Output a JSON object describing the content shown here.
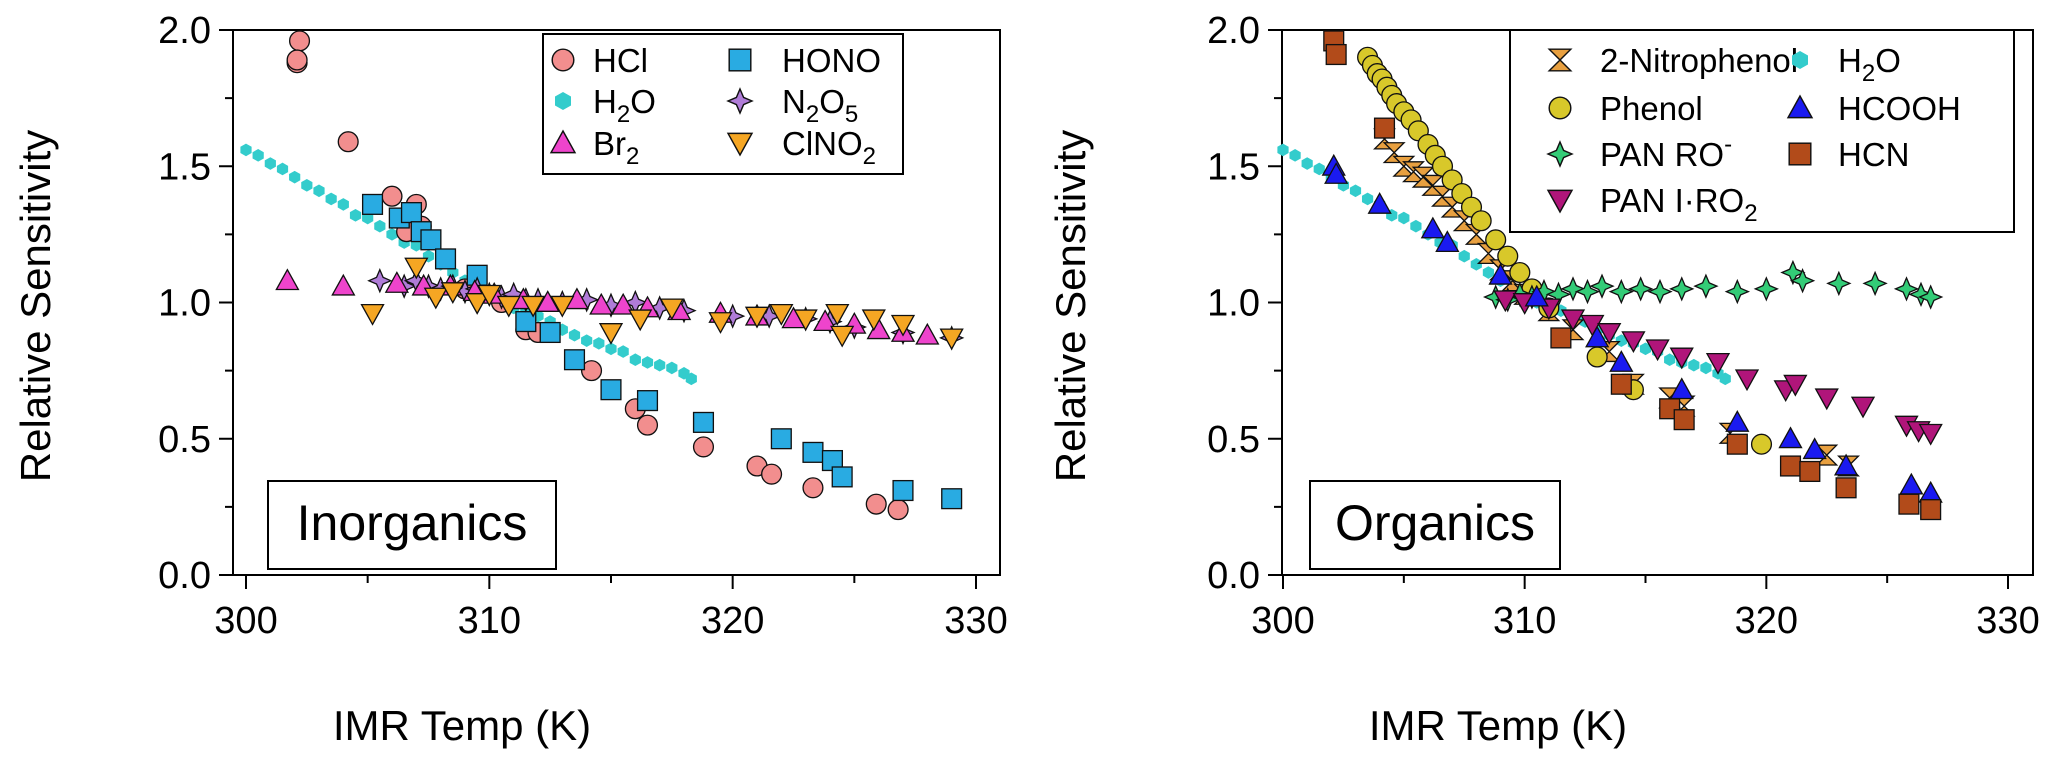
{
  "chart_data": [
    {
      "type": "scatter",
      "panel": "left",
      "panel_label": "Inorganics",
      "xlabel": "IMR Temp (K)",
      "ylabel": "Relative Sensitivity",
      "xlim": [
        300,
        330
      ],
      "ylim": [
        0.0,
        2.0
      ],
      "xticks": [
        "300",
        "310",
        "320",
        "330"
      ],
      "yticks": [
        "0.0",
        "0.5",
        "1.0",
        "1.5",
        "2.0"
      ],
      "legend_position": "top-right",
      "series": [
        {
          "name": "HCl",
          "label_text": "HCl",
          "marker": "circle",
          "color": "#f28e8e",
          "x": [
            302.2,
            302.1,
            302.1,
            304.2,
            306.0,
            306.6,
            307.0,
            307.2,
            309.0,
            310.5,
            311.5,
            312.0,
            314.2,
            316.0,
            316.5,
            318.8,
            321.0,
            321.6,
            323.3,
            325.9,
            326.8
          ],
          "y": [
            1.96,
            1.88,
            1.89,
            1.59,
            1.39,
            1.26,
            1.36,
            1.28,
            1.05,
            1.0,
            0.9,
            0.89,
            0.75,
            0.61,
            0.55,
            0.47,
            0.4,
            0.37,
            0.32,
            0.26,
            0.24
          ]
        },
        {
          "name": "HONO",
          "label_text": "HONO",
          "marker": "square",
          "color": "#29abe2",
          "x": [
            305.2,
            306.3,
            306.8,
            307.2,
            307.6,
            308.2,
            309.5,
            311.5,
            312.5,
            313.5,
            315.0,
            316.5,
            318.8,
            322.0,
            323.3,
            324.1,
            324.5,
            327.0,
            329.0
          ],
          "y": [
            1.36,
            1.31,
            1.33,
            1.26,
            1.23,
            1.16,
            1.1,
            0.93,
            0.89,
            0.79,
            0.68,
            0.64,
            0.56,
            0.5,
            0.45,
            0.42,
            0.36,
            0.31,
            0.28
          ]
        },
        {
          "name": "H2O",
          "label_base": "H",
          "label_sub": "2",
          "label_tail": "O",
          "marker": "hexagon",
          "color": "#33cccc",
          "x": [
            300.0,
            300.5,
            301.0,
            301.5,
            302.0,
            302.5,
            303.0,
            303.5,
            304.0,
            304.5,
            305.0,
            305.5,
            306.0,
            306.5,
            307.0,
            307.5,
            308.0,
            308.5,
            309.0,
            309.5,
            310.0,
            310.5,
            311.0,
            311.5,
            312.0,
            312.5,
            313.0,
            313.5,
            314.0,
            314.5,
            315.0,
            315.5,
            316.0,
            316.5,
            317.0,
            317.5,
            318.0,
            318.3
          ],
          "y": [
            1.56,
            1.54,
            1.51,
            1.49,
            1.46,
            1.43,
            1.41,
            1.38,
            1.36,
            1.32,
            1.31,
            1.28,
            1.25,
            1.22,
            1.21,
            1.17,
            1.14,
            1.11,
            1.08,
            1.05,
            1.03,
            1.0,
            0.98,
            0.97,
            0.95,
            0.93,
            0.9,
            0.88,
            0.86,
            0.85,
            0.83,
            0.82,
            0.79,
            0.78,
            0.77,
            0.76,
            0.74,
            0.72
          ]
        },
        {
          "name": "N2O5",
          "label_base": "N",
          "label_sub": "2",
          "label_tail": "O",
          "label_sub2": "5",
          "marker": "star4",
          "color": "#b07cd8",
          "x": [
            305.5,
            306.5,
            307.0,
            307.5,
            308.0,
            308.5,
            309.0,
            309.5,
            310.0,
            310.5,
            311.0,
            311.5,
            312.0,
            313.0,
            314.0,
            315.0,
            316.0,
            317.0,
            318.0,
            320.0,
            321.5,
            323.0,
            324.0,
            325.0,
            327.0,
            329.0
          ],
          "y": [
            1.08,
            1.06,
            1.08,
            1.06,
            1.05,
            1.06,
            1.04,
            1.05,
            1.03,
            1.02,
            1.03,
            1.01,
            1.01,
            1.0,
            1.01,
            0.99,
            1.0,
            0.98,
            0.97,
            0.95,
            0.95,
            0.94,
            0.93,
            0.91,
            0.89,
            0.87
          ]
        },
        {
          "name": "Br2",
          "label_base": "Br",
          "label_sub": "2",
          "marker": "triangle-up",
          "color": "#ee44cc",
          "x": [
            301.7,
            304.0,
            306.2,
            307.3,
            308.4,
            309.4,
            310.2,
            311.4,
            312.4,
            313.6,
            314.6,
            315.5,
            316.5,
            317.8,
            319.5,
            321.0,
            322.5,
            323.8,
            325.0,
            326.0,
            327.0,
            328.0
          ],
          "y": [
            1.08,
            1.06,
            1.07,
            1.06,
            1.06,
            1.04,
            1.03,
            1.01,
            1.0,
            1.01,
            0.99,
            0.99,
            0.98,
            0.97,
            0.96,
            0.95,
            0.94,
            0.93,
            0.92,
            0.9,
            0.89,
            0.88
          ]
        },
        {
          "name": "ClNO2",
          "label_base": "ClNO",
          "label_sub": "2",
          "marker": "triangle-down",
          "color": "#f5a623",
          "x": [
            305.2,
            307.0,
            307.8,
            308.5,
            309.5,
            310.0,
            310.8,
            311.8,
            313.0,
            315.0,
            316.2,
            317.5,
            319.5,
            321.0,
            322.0,
            323.0,
            324.3,
            324.5,
            325.8,
            327.0,
            329.0
          ],
          "y": [
            0.96,
            1.13,
            1.02,
            1.04,
            1.0,
            1.03,
            0.99,
            0.99,
            0.99,
            0.89,
            0.94,
            0.98,
            0.93,
            0.95,
            0.96,
            0.94,
            0.96,
            0.88,
            0.94,
            0.92,
            0.87
          ]
        }
      ]
    },
    {
      "type": "scatter",
      "panel": "right",
      "panel_label": "Organics",
      "xlabel": "IMR Temp (K)",
      "ylabel": "Relative Sensitivity",
      "xlim": [
        300,
        330
      ],
      "ylim": [
        0.0,
        2.0
      ],
      "xticks": [
        "300",
        "310",
        "320",
        "330"
      ],
      "yticks": [
        "0.0",
        "0.5",
        "1.0",
        "1.5",
        "2.0"
      ],
      "legend_position": "top-right",
      "series": [
        {
          "name": "2-Nitrophenol",
          "label_text": "2-Nitrophenol",
          "marker": "hourglass",
          "color": "#e8a040",
          "x": [
            304.2,
            304.6,
            305.0,
            305.4,
            305.8,
            306.2,
            306.6,
            307.0,
            307.5,
            308.0,
            308.5,
            309.0,
            309.5,
            310.0,
            311.0,
            312.0,
            313.5,
            314.5,
            316.0,
            316.6,
            318.5,
            322.5,
            323.4
          ],
          "y": [
            1.6,
            1.55,
            1.5,
            1.48,
            1.46,
            1.43,
            1.39,
            1.35,
            1.3,
            1.25,
            1.18,
            1.12,
            1.08,
            1.03,
            0.97,
            0.9,
            0.82,
            0.7,
            0.65,
            0.62,
            0.52,
            0.44,
            0.4
          ]
        },
        {
          "name": "Phenol",
          "label_text": "Phenol",
          "marker": "circle",
          "color": "#d8c82a",
          "x": [
            303.5,
            303.7,
            303.9,
            304.1,
            304.3,
            304.5,
            304.7,
            305.0,
            305.3,
            305.6,
            306.0,
            306.3,
            306.6,
            307.0,
            307.4,
            307.8,
            308.2,
            308.8,
            309.3,
            309.8,
            310.3,
            311.0,
            313.0,
            314.5,
            319.8
          ],
          "y": [
            1.9,
            1.87,
            1.84,
            1.82,
            1.79,
            1.76,
            1.73,
            1.7,
            1.67,
            1.63,
            1.58,
            1.54,
            1.5,
            1.45,
            1.4,
            1.35,
            1.3,
            1.23,
            1.17,
            1.11,
            1.05,
            0.98,
            0.8,
            0.68,
            0.48
          ]
        },
        {
          "name": "PAN RO-",
          "label_text": "PAN RO",
          "label_sup": "-",
          "marker": "star4",
          "color": "#33cc77",
          "x": [
            308.8,
            309.3,
            309.8,
            310.3,
            310.8,
            311.4,
            312.0,
            312.6,
            313.2,
            314.0,
            314.8,
            315.6,
            316.5,
            317.5,
            318.8,
            320.0,
            321.1,
            321.5,
            323.0,
            324.5,
            325.8,
            326.4,
            326.8
          ],
          "y": [
            1.02,
            1.01,
            1.03,
            1.02,
            1.04,
            1.03,
            1.05,
            1.04,
            1.06,
            1.04,
            1.05,
            1.04,
            1.05,
            1.06,
            1.04,
            1.05,
            1.11,
            1.08,
            1.07,
            1.07,
            1.05,
            1.03,
            1.02
          ]
        },
        {
          "name": "PAN I·RO2",
          "label_text": "PAN I·RO",
          "label_sub": "2",
          "marker": "triangle-down",
          "color": "#b0157a",
          "x": [
            309.2,
            310.0,
            311.0,
            312.0,
            312.8,
            313.5,
            314.5,
            315.5,
            316.5,
            318.0,
            319.2,
            320.8,
            321.2,
            322.5,
            324.0,
            325.8,
            326.3,
            326.8
          ],
          "y": [
            1.01,
            1.0,
            0.98,
            0.94,
            0.92,
            0.89,
            0.86,
            0.83,
            0.8,
            0.78,
            0.72,
            0.68,
            0.7,
            0.65,
            0.62,
            0.55,
            0.53,
            0.52
          ]
        },
        {
          "name": "H2O",
          "label_base": "H",
          "label_sub": "2",
          "label_tail": "O",
          "marker": "hexagon",
          "color": "#33cccc",
          "x": [
            300.0,
            300.5,
            301.0,
            301.5,
            302.0,
            302.5,
            303.0,
            303.5,
            304.0,
            304.5,
            305.0,
            305.5,
            306.0,
            306.5,
            307.0,
            307.5,
            308.0,
            308.5,
            309.0,
            309.5,
            310.0,
            310.5,
            311.0,
            311.5,
            312.0,
            312.5,
            313.0,
            313.5,
            314.0,
            314.5,
            315.0,
            315.5,
            316.0,
            316.5,
            317.0,
            317.5,
            318.0,
            318.3
          ],
          "y": [
            1.56,
            1.54,
            1.51,
            1.49,
            1.46,
            1.43,
            1.41,
            1.38,
            1.36,
            1.32,
            1.31,
            1.28,
            1.25,
            1.22,
            1.21,
            1.17,
            1.14,
            1.11,
            1.08,
            1.05,
            1.03,
            1.0,
            0.98,
            0.97,
            0.95,
            0.93,
            0.9,
            0.88,
            0.86,
            0.85,
            0.83,
            0.82,
            0.79,
            0.78,
            0.77,
            0.76,
            0.74,
            0.72
          ]
        },
        {
          "name": "HCOOH",
          "label_text": "HCOOH",
          "marker": "triangle-up",
          "color": "#1a1af0",
          "x": [
            302.1,
            302.2,
            304.0,
            306.2,
            306.8,
            309.0,
            310.5,
            313.0,
            314.0,
            316.5,
            318.8,
            321.0,
            322.0,
            323.3,
            326.0,
            326.8
          ],
          "y": [
            1.5,
            1.47,
            1.36,
            1.27,
            1.22,
            1.1,
            1.02,
            0.87,
            0.78,
            0.68,
            0.56,
            0.5,
            0.46,
            0.4,
            0.33,
            0.3
          ]
        },
        {
          "name": "HCN",
          "label_text": "HCN",
          "marker": "square",
          "color": "#b24b1a",
          "x": [
            302.1,
            302.2,
            304.2,
            311.5,
            314.0,
            316.0,
            316.6,
            318.8,
            321.0,
            321.8,
            323.3,
            325.9,
            326.8
          ],
          "y": [
            1.96,
            1.91,
            1.64,
            0.87,
            0.7,
            0.61,
            0.57,
            0.48,
            0.4,
            0.38,
            0.32,
            0.26,
            0.24
          ]
        }
      ]
    }
  ]
}
